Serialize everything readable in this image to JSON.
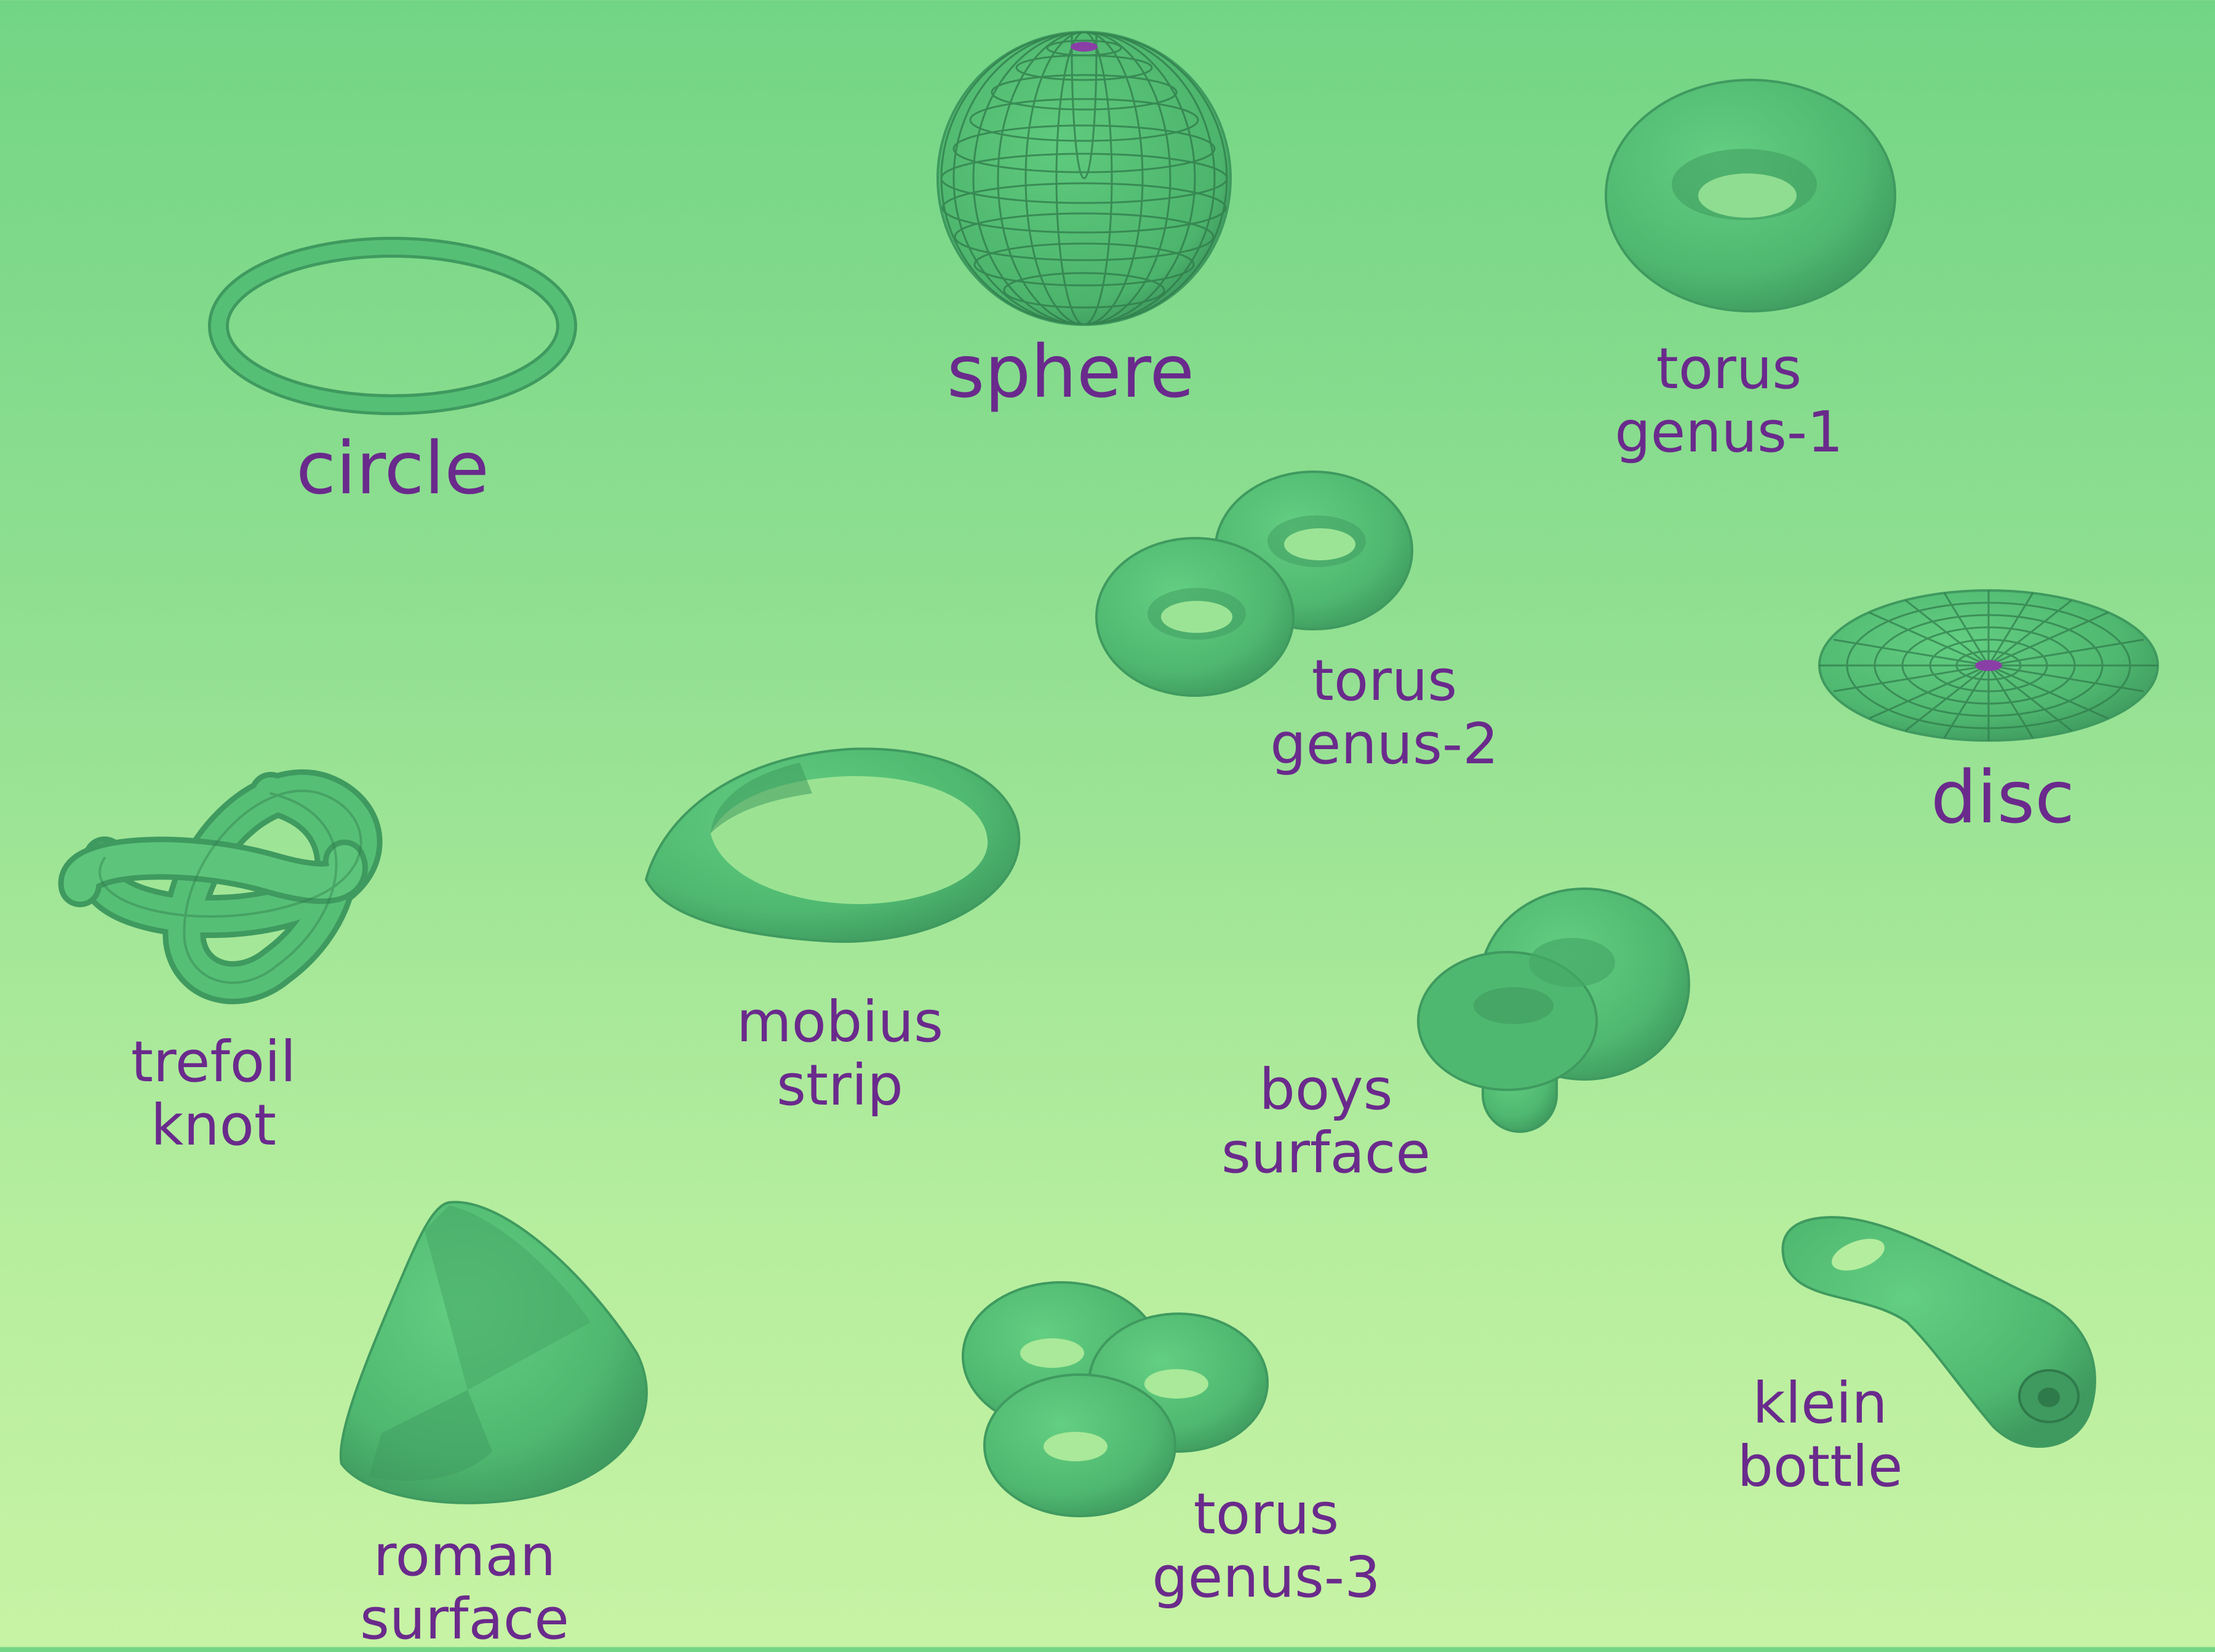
{
  "colors": {
    "surface": "#4fb870",
    "surface_dark": "#3f9a5f",
    "surface_light": "#5fcb7e",
    "grid_line": "#2f7a4a",
    "pole": "#8a3fa6",
    "label": "#6a2a8c"
  },
  "shapes": {
    "circle": {
      "label": "circle"
    },
    "sphere": {
      "label": "sphere"
    },
    "torus1": {
      "line1": "torus",
      "line2": "genus-1"
    },
    "torus2": {
      "line1": "torus",
      "line2": "genus-2"
    },
    "disc": {
      "label": "disc"
    },
    "trefoil": {
      "line1": "trefoil",
      "line2": "knot"
    },
    "mobius": {
      "line1": "mobius",
      "line2": "strip"
    },
    "boys": {
      "line1": "boys",
      "line2": "surface"
    },
    "roman": {
      "line1": "roman",
      "line2": "surface"
    },
    "torus3": {
      "line1": "torus",
      "line2": "genus-3"
    },
    "klein": {
      "line1": "klein",
      "line2": "bottle"
    }
  }
}
